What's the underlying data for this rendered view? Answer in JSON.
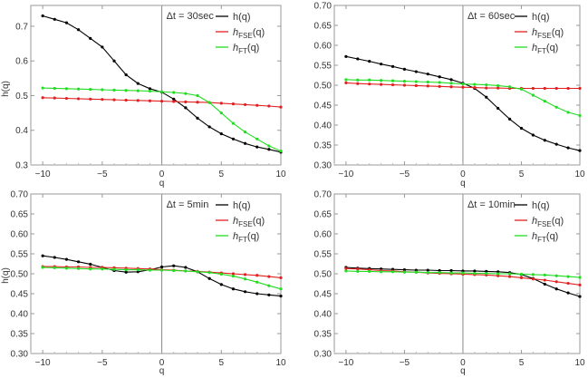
{
  "chart_data": [
    {
      "type": "line",
      "annotation": "Δt = 30sec",
      "xlabel": "q",
      "ylabel": "h(q)",
      "xlim": [
        -11,
        10
      ],
      "ylim": [
        0.3,
        0.76
      ],
      "xticks": [
        -10,
        -5,
        0,
        5,
        10
      ],
      "yticks": [
        0.3,
        0.4,
        0.5,
        0.6,
        0.7
      ],
      "ytick_labels": [
        "0.3",
        "0.4",
        "0.5",
        "0.6",
        "0.7"
      ],
      "legend_position": "top-right",
      "x": [
        -10,
        -9,
        -8,
        -7,
        -6,
        -5,
        -4,
        -3,
        -2,
        -1,
        0,
        1,
        2,
        3,
        4,
        5,
        6,
        7,
        8,
        9,
        10
      ],
      "series": [
        {
          "name": "h(q)",
          "color": "#000000",
          "values": [
            0.73,
            0.72,
            0.71,
            0.69,
            0.665,
            0.64,
            0.6,
            0.56,
            0.535,
            0.52,
            0.51,
            0.49,
            0.465,
            0.435,
            0.41,
            0.39,
            0.375,
            0.362,
            0.352,
            0.345,
            0.337
          ]
        },
        {
          "name": "hFSE(q)",
          "color": "#e32020",
          "values": [
            0.494,
            0.493,
            0.492,
            0.491,
            0.49,
            0.489,
            0.488,
            0.487,
            0.486,
            0.485,
            0.484,
            0.483,
            0.482,
            0.481,
            0.48,
            0.478,
            0.476,
            0.474,
            0.472,
            0.47,
            0.467
          ]
        },
        {
          "name": "hFT(q)",
          "color": "#22dd22",
          "values": [
            0.522,
            0.521,
            0.52,
            0.519,
            0.518,
            0.517,
            0.516,
            0.515,
            0.514,
            0.513,
            0.511,
            0.509,
            0.506,
            0.5,
            0.48,
            0.45,
            0.42,
            0.395,
            0.375,
            0.355,
            0.34
          ]
        }
      ]
    },
    {
      "type": "line",
      "annotation": "Δt = 60sec",
      "xlabel": "q",
      "ylabel": "",
      "xlim": [
        -11,
        10
      ],
      "ylim": [
        0.3,
        0.7
      ],
      "xticks": [
        -10,
        -5,
        0,
        5,
        10
      ],
      "yticks": [
        0.3,
        0.35,
        0.4,
        0.45,
        0.5,
        0.55,
        0.6,
        0.65,
        0.7
      ],
      "ytick_labels": [
        "0.30",
        "0.35",
        "0.40",
        "0.45",
        "0.50",
        "0.55",
        "0.60",
        "0.65",
        "0.70"
      ],
      "legend_position": "top-right",
      "x": [
        -10,
        -9,
        -8,
        -7,
        -6,
        -5,
        -4,
        -3,
        -2,
        -1,
        0,
        1,
        2,
        3,
        4,
        5,
        6,
        7,
        8,
        9,
        10
      ],
      "series": [
        {
          "name": "h(q)",
          "color": "#000000",
          "values": [
            0.572,
            0.566,
            0.56,
            0.553,
            0.547,
            0.54,
            0.534,
            0.528,
            0.521,
            0.514,
            0.505,
            0.492,
            0.47,
            0.442,
            0.415,
            0.392,
            0.375,
            0.362,
            0.352,
            0.343,
            0.336
          ]
        },
        {
          "name": "hFSE(q)",
          "color": "#e32020",
          "values": [
            0.506,
            0.504,
            0.503,
            0.502,
            0.501,
            0.5,
            0.499,
            0.498,
            0.497,
            0.496,
            0.495,
            0.494,
            0.493,
            0.493,
            0.492,
            0.492,
            0.492,
            0.492,
            0.492,
            0.492,
            0.492
          ]
        },
        {
          "name": "hFT(q)",
          "color": "#22dd22",
          "values": [
            0.514,
            0.513,
            0.513,
            0.512,
            0.511,
            0.51,
            0.509,
            0.508,
            0.507,
            0.505,
            0.503,
            0.502,
            0.501,
            0.499,
            0.496,
            0.49,
            0.475,
            0.46,
            0.445,
            0.432,
            0.424
          ]
        }
      ]
    },
    {
      "type": "line",
      "annotation": "Δt = 5min",
      "xlabel": "q",
      "ylabel": "h(q)",
      "xlim": [
        -11,
        10
      ],
      "ylim": [
        0.3,
        0.7
      ],
      "xticks": [
        -10,
        -5,
        0,
        5,
        10
      ],
      "yticks": [
        0.3,
        0.35,
        0.4,
        0.45,
        0.5,
        0.55,
        0.6,
        0.65,
        0.7
      ],
      "ytick_labels": [
        "0.30",
        "0.35",
        "0.40",
        "0.45",
        "0.50",
        "0.55",
        "0.60",
        "0.65",
        "0.70"
      ],
      "legend_position": "top-right",
      "x": [
        -10,
        -9,
        -8,
        -7,
        -6,
        -5,
        -4,
        -3,
        -2,
        -1,
        0,
        1,
        2,
        3,
        4,
        5,
        6,
        7,
        8,
        9,
        10
      ],
      "series": [
        {
          "name": "h(q)",
          "color": "#000000",
          "values": [
            0.545,
            0.541,
            0.536,
            0.53,
            0.524,
            0.516,
            0.508,
            0.504,
            0.505,
            0.51,
            0.517,
            0.52,
            0.516,
            0.505,
            0.488,
            0.473,
            0.462,
            0.455,
            0.45,
            0.447,
            0.444
          ]
        },
        {
          "name": "hFSE(q)",
          "color": "#e32020",
          "values": [
            0.518,
            0.518,
            0.517,
            0.517,
            0.516,
            0.516,
            0.515,
            0.514,
            0.513,
            0.512,
            0.51,
            0.509,
            0.507,
            0.506,
            0.504,
            0.502,
            0.5,
            0.498,
            0.496,
            0.493,
            0.49
          ]
        },
        {
          "name": "hFT(q)",
          "color": "#22dd22",
          "values": [
            0.516,
            0.515,
            0.514,
            0.513,
            0.512,
            0.512,
            0.511,
            0.51,
            0.51,
            0.509,
            0.509,
            0.508,
            0.507,
            0.505,
            0.503,
            0.499,
            0.494,
            0.487,
            0.479,
            0.47,
            0.462
          ]
        }
      ]
    },
    {
      "type": "line",
      "annotation": "Δt = 10min",
      "xlabel": "q",
      "ylabel": "",
      "xlim": [
        -11,
        10
      ],
      "ylim": [
        0.3,
        0.7
      ],
      "xticks": [
        -10,
        -5,
        0,
        5,
        10
      ],
      "yticks": [
        0.3,
        0.35,
        0.4,
        0.45,
        0.5,
        0.55,
        0.6,
        0.65,
        0.7
      ],
      "ytick_labels": [
        "0.30",
        "0.35",
        "0.40",
        "0.45",
        "0.50",
        "0.55",
        "0.60",
        "0.65",
        "0.70"
      ],
      "legend_position": "top-right",
      "x": [
        -10,
        -9,
        -8,
        -7,
        -6,
        -5,
        -4,
        -3,
        -2,
        -1,
        0,
        1,
        2,
        3,
        4,
        5,
        6,
        7,
        8,
        9,
        10
      ],
      "series": [
        {
          "name": "h(q)",
          "color": "#000000",
          "values": [
            0.516,
            0.514,
            0.513,
            0.512,
            0.511,
            0.51,
            0.509,
            0.509,
            0.508,
            0.508,
            0.507,
            0.507,
            0.506,
            0.505,
            0.503,
            0.498,
            0.488,
            0.474,
            0.462,
            0.452,
            0.443
          ]
        },
        {
          "name": "hFSE(q)",
          "color": "#e32020",
          "values": [
            0.513,
            0.512,
            0.51,
            0.508,
            0.507,
            0.505,
            0.504,
            0.502,
            0.501,
            0.5,
            0.499,
            0.498,
            0.497,
            0.495,
            0.493,
            0.49,
            0.487,
            0.484,
            0.48,
            0.476,
            0.472
          ]
        },
        {
          "name": "hFT(q)",
          "color": "#22dd22",
          "values": [
            0.507,
            0.506,
            0.506,
            0.505,
            0.505,
            0.504,
            0.504,
            0.503,
            0.503,
            0.502,
            0.502,
            0.501,
            0.501,
            0.5,
            0.5,
            0.499,
            0.498,
            0.497,
            0.495,
            0.493,
            0.491
          ]
        }
      ]
    }
  ]
}
